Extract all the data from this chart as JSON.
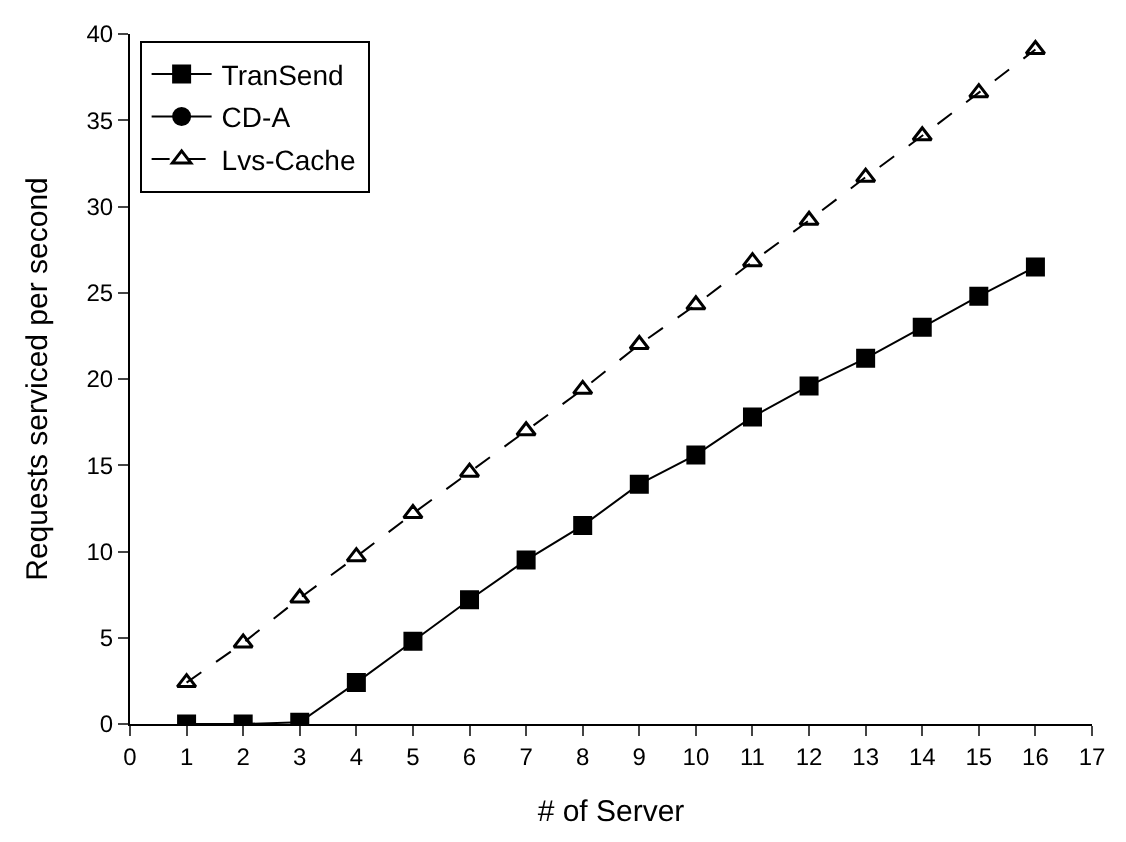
{
  "chart_data": {
    "type": "line",
    "xlabel": "# of Server",
    "ylabel": "Requests serviced per second",
    "x": [
      1,
      2,
      3,
      4,
      5,
      6,
      7,
      8,
      9,
      10,
      11,
      12,
      13,
      14,
      15,
      16
    ],
    "series": [
      {
        "name": "TranSend",
        "color": "#000000",
        "marker": "square",
        "values": [
          0,
          0,
          0.1,
          2.4,
          4.8,
          7.2,
          9.5,
          11.5,
          13.9,
          15.6,
          17.8,
          19.6,
          21.2,
          23.0,
          24.8,
          26.5
        ]
      },
      {
        "name": "CD-A",
        "color": "#000000",
        "marker": "circle",
        "values": [
          null,
          null,
          null,
          null,
          null,
          null,
          null,
          null,
          null,
          null,
          null,
          null,
          null,
          null,
          null,
          null
        ]
      },
      {
        "name": "Lvs-Cache",
        "color": "#000000",
        "marker": "triangle",
        "line_style": "dashed",
        "values": [
          2.4,
          4.7,
          7.3,
          9.7,
          12.2,
          14.6,
          17.0,
          19.4,
          22.0,
          24.3,
          26.8,
          29.2,
          31.7,
          34.1,
          36.6,
          39.1
        ]
      }
    ],
    "xlim": [
      0,
      17
    ],
    "xticks": [
      0,
      1,
      2,
      3,
      4,
      5,
      6,
      7,
      8,
      9,
      10,
      11,
      12,
      13,
      14,
      15,
      16,
      17
    ],
    "ylim": [
      0,
      40
    ],
    "yticks": [
      0,
      5,
      10,
      15,
      20,
      25,
      30,
      35,
      40
    ],
    "legend": "top left"
  }
}
